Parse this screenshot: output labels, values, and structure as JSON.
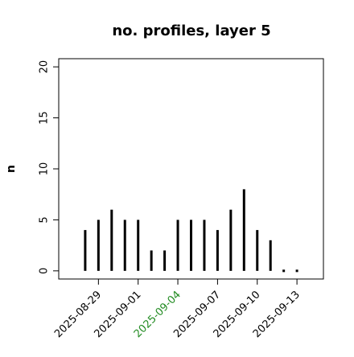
{
  "chart_data": {
    "type": "bar",
    "title": "no. profiles, layer 5",
    "y_label": "n",
    "x": [
      "2025-08-28",
      "2025-08-29",
      "2025-08-30",
      "2025-08-31",
      "2025-09-01",
      "2025-09-02",
      "2025-09-03",
      "2025-09-04",
      "2025-09-05",
      "2025-09-06",
      "2025-09-07",
      "2025-09-08",
      "2025-09-09",
      "2025-09-10",
      "2025-09-11",
      "2025-09-12",
      "2025-09-13"
    ],
    "values": [
      4,
      5,
      6,
      5,
      5,
      2,
      2,
      5,
      5,
      5,
      4,
      6,
      8,
      4,
      3,
      0,
      0
    ],
    "color": "#000000",
    "xlim": [
      "2025-08-26",
      "2025-09-15"
    ],
    "xticks": [
      "2025-08-29",
      "2025-09-01",
      "2025-09-04",
      "2025-09-07",
      "2025-09-10",
      "2025-09-13"
    ],
    "xtick_colors": [
      "#000000",
      "#000000",
      "#228b22",
      "#000000",
      "#000000",
      "#000000"
    ],
    "ylim": [
      -0.8,
      20.8
    ],
    "yticks": [
      0,
      5,
      10,
      15,
      20
    ],
    "grid": false
  }
}
